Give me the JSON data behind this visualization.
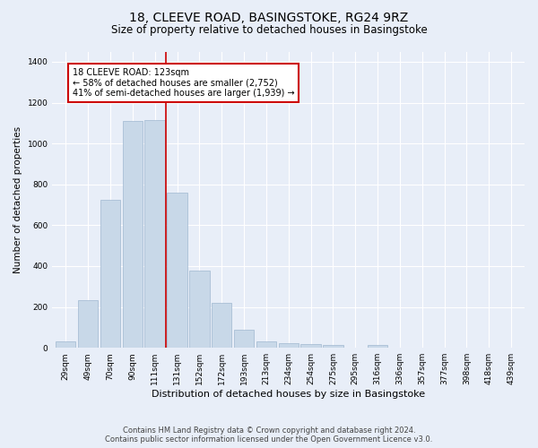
{
  "title": "18, CLEEVE ROAD, BASINGSTOKE, RG24 9RZ",
  "subtitle": "Size of property relative to detached houses in Basingstoke",
  "xlabel": "Distribution of detached houses by size in Basingstoke",
  "ylabel": "Number of detached properties",
  "categories": [
    "29sqm",
    "49sqm",
    "70sqm",
    "90sqm",
    "111sqm",
    "131sqm",
    "152sqm",
    "172sqm",
    "193sqm",
    "213sqm",
    "234sqm",
    "254sqm",
    "275sqm",
    "295sqm",
    "316sqm",
    "336sqm",
    "357sqm",
    "377sqm",
    "398sqm",
    "418sqm",
    "439sqm"
  ],
  "values": [
    30,
    235,
    725,
    1110,
    1115,
    760,
    378,
    222,
    90,
    30,
    25,
    20,
    15,
    0,
    12,
    0,
    0,
    0,
    0,
    0,
    0
  ],
  "bar_color": "#c8d8e8",
  "bar_edgecolor": "#a0b8d0",
  "vline_color": "#cc0000",
  "annotation_text": "18 CLEEVE ROAD: 123sqm\n← 58% of detached houses are smaller (2,752)\n41% of semi-detached houses are larger (1,939) →",
  "annotation_box_facecolor": "#ffffff",
  "annotation_box_edgecolor": "#cc0000",
  "ylim": [
    0,
    1450
  ],
  "yticks": [
    0,
    200,
    400,
    600,
    800,
    1000,
    1200,
    1400
  ],
  "background_color": "#e8eef8",
  "plot_background": "#e8eef8",
  "footer_line1": "Contains HM Land Registry data © Crown copyright and database right 2024.",
  "footer_line2": "Contains public sector information licensed under the Open Government Licence v3.0.",
  "title_fontsize": 10,
  "subtitle_fontsize": 8.5,
  "xlabel_fontsize": 8,
  "ylabel_fontsize": 7.5,
  "tick_fontsize": 6.5,
  "annotation_fontsize": 7,
  "footer_fontsize": 6
}
